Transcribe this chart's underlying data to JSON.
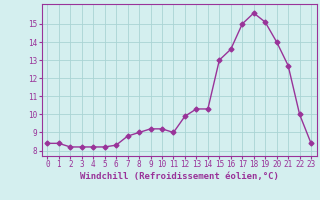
{
  "x": [
    0,
    1,
    2,
    3,
    4,
    5,
    6,
    7,
    8,
    9,
    10,
    11,
    12,
    13,
    14,
    15,
    16,
    17,
    18,
    19,
    20,
    21,
    22,
    23
  ],
  "y": [
    8.4,
    8.4,
    8.2,
    8.2,
    8.2,
    8.2,
    8.3,
    8.8,
    9.0,
    9.2,
    9.2,
    9.0,
    9.9,
    10.3,
    10.3,
    13.0,
    13.6,
    15.0,
    15.6,
    15.1,
    14.0,
    12.7,
    10.0,
    8.4
  ],
  "line_color": "#993399",
  "marker": "D",
  "markersize": 2.5,
  "linewidth": 1,
  "xlabel": "Windchill (Refroidissement éolien,°C)",
  "xlabel_color": "#993399",
  "xlabel_fontsize": 6.5,
  "ylabel_ticks": [
    8,
    9,
    10,
    11,
    12,
    13,
    14,
    15
  ],
  "ylim": [
    7.7,
    16.1
  ],
  "xlim": [
    -0.5,
    23.5
  ],
  "xtick_labels": [
    "0",
    "1",
    "2",
    "3",
    "4",
    "5",
    "6",
    "7",
    "8",
    "9",
    "10",
    "11",
    "12",
    "13",
    "14",
    "15",
    "16",
    "17",
    "18",
    "19",
    "20",
    "21",
    "22",
    "23"
  ],
  "background_color": "#d4efef",
  "grid_color": "#aad4d4",
  "tick_color": "#993399",
  "tick_fontsize": 5.5,
  "spine_color": "#993399"
}
